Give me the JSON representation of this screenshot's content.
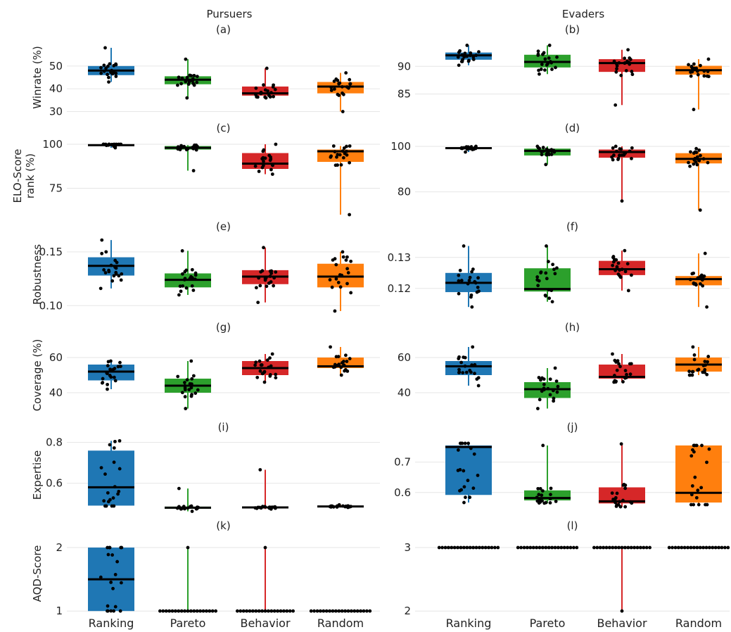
{
  "figure": {
    "column_titles": [
      "Pursuers",
      "Evaders"
    ],
    "categories": [
      "Ranking",
      "Pareto",
      "Behavior",
      "Random"
    ],
    "colors": {
      "Ranking": "#1f77b4",
      "Pareto": "#2ca02c",
      "Behavior": "#d62728",
      "Random": "#ff7f0e",
      "median": "#000000",
      "points": "#000000"
    }
  },
  "chart_data": [
    {
      "type": "box",
      "label": "(a)",
      "column": "Pursuers",
      "ylabel": "Winrate (%)",
      "ylim": [
        28,
        62
      ],
      "yticks": [
        30,
        40,
        50
      ],
      "boxes": [
        {
          "category": "Ranking",
          "q1": 46,
          "median": 48,
          "q3": 50,
          "min": 43,
          "max": 58
        },
        {
          "category": "Pareto",
          "q1": 42,
          "median": 44,
          "q3": 45.5,
          "min": 36,
          "max": 53
        },
        {
          "category": "Behavior",
          "q1": 37,
          "median": 38,
          "q3": 41,
          "min": 36,
          "max": 49
        },
        {
          "category": "Random",
          "q1": 38,
          "median": 41,
          "q3": 43,
          "min": 30,
          "max": 47
        }
      ]
    },
    {
      "type": "box",
      "label": "(b)",
      "column": "Evaders",
      "ylabel": "",
      "ylim": [
        81,
        95
      ],
      "yticks": [
        85,
        90
      ],
      "boxes": [
        {
          "category": "Ranking",
          "q1": 91.2,
          "median": 92,
          "q3": 92.5,
          "min": 90.2,
          "max": 93.8
        },
        {
          "category": "Pareto",
          "q1": 89.8,
          "median": 90.8,
          "q3": 92.1,
          "min": 88.6,
          "max": 93.8
        },
        {
          "category": "Behavior",
          "q1": 89,
          "median": 90.6,
          "q3": 91.3,
          "min": 83,
          "max": 93
        },
        {
          "category": "Random",
          "q1": 88.5,
          "median": 89.3,
          "q3": 90.1,
          "min": 82.2,
          "max": 91.3
        }
      ]
    },
    {
      "type": "box",
      "label": "(c)",
      "column": "Pursuers",
      "ylabel": "ELO-Score rank (%)",
      "ylim": [
        60,
        104
      ],
      "yticks": [
        75,
        100
      ],
      "boxes": [
        {
          "category": "Ranking",
          "q1": 99,
          "median": 99.5,
          "q3": 100,
          "min": 98,
          "max": 100
        },
        {
          "category": "Pareto",
          "q1": 97,
          "median": 98,
          "q3": 99,
          "min": 85,
          "max": 99.5
        },
        {
          "category": "Behavior",
          "q1": 86,
          "median": 89,
          "q3": 95,
          "min": 83,
          "max": 100
        },
        {
          "category": "Random",
          "q1": 90,
          "median": 96,
          "q3": 97,
          "min": 60,
          "max": 99
        }
      ]
    },
    {
      "type": "box",
      "label": "(d)",
      "column": "Evaders",
      "ylabel": "",
      "ylim": [
        70,
        104
      ],
      "yticks": [
        80,
        100
      ],
      "boxes": [
        {
          "category": "Ranking",
          "q1": 98.8,
          "median": 99.2,
          "q3": 99.6,
          "min": 97.5,
          "max": 100
        },
        {
          "category": "Pareto",
          "q1": 96,
          "median": 98,
          "q3": 99,
          "min": 92,
          "max": 100
        },
        {
          "category": "Behavior",
          "q1": 95,
          "median": 97.5,
          "q3": 98.6,
          "min": 76,
          "max": 100
        },
        {
          "category": "Random",
          "q1": 92.5,
          "median": 94.5,
          "q3": 97,
          "min": 72,
          "max": 99
        }
      ]
    },
    {
      "type": "box",
      "label": "(e)",
      "column": "Pursuers",
      "ylabel": "Robustness",
      "ylim": [
        0.093,
        0.165
      ],
      "yticks": [
        0.1,
        0.15
      ],
      "boxes": [
        {
          "category": "Ranking",
          "q1": 0.128,
          "median": 0.137,
          "q3": 0.145,
          "min": 0.116,
          "max": 0.161
        },
        {
          "category": "Pareto",
          "q1": 0.117,
          "median": 0.124,
          "q3": 0.13,
          "min": 0.11,
          "max": 0.151
        },
        {
          "category": "Behavior",
          "q1": 0.12,
          "median": 0.127,
          "q3": 0.133,
          "min": 0.103,
          "max": 0.154
        },
        {
          "category": "Random",
          "q1": 0.117,
          "median": 0.127,
          "q3": 0.139,
          "min": 0.095,
          "max": 0.15
        }
      ]
    },
    {
      "type": "box",
      "label": "(f)",
      "column": "Evaders",
      "ylabel": "",
      "ylim": [
        0.112,
        0.137
      ],
      "yticks": [
        0.12,
        0.13
      ],
      "boxes": [
        {
          "category": "Ranking",
          "q1": 0.1188,
          "median": 0.1218,
          "q3": 0.125,
          "min": 0.114,
          "max": 0.1337
        },
        {
          "category": "Pareto",
          "q1": 0.119,
          "median": 0.1198,
          "q3": 0.1265,
          "min": 0.1157,
          "max": 0.1337
        },
        {
          "category": "Behavior",
          "q1": 0.1243,
          "median": 0.1262,
          "q3": 0.1289,
          "min": 0.1193,
          "max": 0.1322
        },
        {
          "category": "Random",
          "q1": 0.121,
          "median": 0.123,
          "q3": 0.124,
          "min": 0.114,
          "max": 0.1313
        }
      ]
    },
    {
      "type": "box",
      "label": "(g)",
      "column": "Pursuers",
      "ylabel": "Coverage (%)",
      "ylim": [
        28,
        72
      ],
      "yticks": [
        40,
        60
      ],
      "boxes": [
        {
          "category": "Ranking",
          "q1": 47,
          "median": 52,
          "q3": 56,
          "min": 42,
          "max": 58
        },
        {
          "category": "Pareto",
          "q1": 40,
          "median": 44,
          "q3": 48,
          "min": 31,
          "max": 58
        },
        {
          "category": "Behavior",
          "q1": 50,
          "median": 54,
          "q3": 58,
          "min": 46,
          "max": 62
        },
        {
          "category": "Random",
          "q1": 54,
          "median": 55,
          "q3": 60,
          "min": 50,
          "max": 66
        }
      ]
    },
    {
      "type": "box",
      "label": "(h)",
      "column": "Evaders",
      "ylabel": "",
      "ylim": [
        28,
        72
      ],
      "yticks": [
        40,
        60
      ],
      "boxes": [
        {
          "category": "Ranking",
          "q1": 50,
          "median": 55,
          "q3": 58,
          "min": 44,
          "max": 66
        },
        {
          "category": "Pareto",
          "q1": 37,
          "median": 42,
          "q3": 46,
          "min": 31,
          "max": 54
        },
        {
          "category": "Behavior",
          "q1": 48,
          "median": 49,
          "q3": 56,
          "min": 46,
          "max": 62
        },
        {
          "category": "Random",
          "q1": 52,
          "median": 56,
          "q3": 60,
          "min": 50,
          "max": 66
        }
      ]
    },
    {
      "type": "box",
      "label": "(i)",
      "column": "Pursuers",
      "ylabel": "Expertise",
      "ylim": [
        0.45,
        0.83
      ],
      "yticks": [
        0.6,
        0.8
      ],
      "boxes": [
        {
          "category": "Ranking",
          "q1": 0.49,
          "median": 0.58,
          "q3": 0.76,
          "min": 0.488,
          "max": 0.808
        },
        {
          "category": "Pareto",
          "q1": 0.475,
          "median": 0.48,
          "q3": 0.485,
          "min": 0.462,
          "max": 0.574
        },
        {
          "category": "Behavior",
          "q1": 0.478,
          "median": 0.481,
          "q3": 0.484,
          "min": 0.473,
          "max": 0.666
        },
        {
          "category": "Random",
          "q1": 0.484,
          "median": 0.486,
          "q3": 0.488,
          "min": 0.481,
          "max": 0.494
        }
      ]
    },
    {
      "type": "box",
      "label": "(j)",
      "column": "Evaders",
      "ylabel": "",
      "ylim": [
        0.53,
        0.785
      ],
      "yticks": [
        0.6,
        0.7
      ],
      "boxes": [
        {
          "category": "Ranking",
          "q1": 0.592,
          "median": 0.75,
          "q3": 0.755,
          "min": 0.567,
          "max": 0.762
        },
        {
          "category": "Pareto",
          "q1": 0.574,
          "median": 0.582,
          "q3": 0.607,
          "min": 0.565,
          "max": 0.755
        },
        {
          "category": "Behavior",
          "q1": 0.564,
          "median": 0.571,
          "q3": 0.617,
          "min": 0.553,
          "max": 0.76
        },
        {
          "category": "Random",
          "q1": 0.567,
          "median": 0.599,
          "q3": 0.755,
          "min": 0.56,
          "max": 0.755
        }
      ]
    },
    {
      "type": "box",
      "label": "(k)",
      "column": "Pursuers",
      "ylabel": "AQD-Score",
      "ylim": [
        0.98,
        2.2
      ],
      "yticks": [
        1,
        2
      ],
      "boxes": [
        {
          "category": "Ranking",
          "q1": 1,
          "median": 1.5,
          "q3": 2,
          "min": 1,
          "max": 2
        },
        {
          "category": "Pareto",
          "q1": 1,
          "median": 1,
          "q3": 1,
          "min": 1,
          "max": 2
        },
        {
          "category": "Behavior",
          "q1": 1,
          "median": 1,
          "q3": 1,
          "min": 1,
          "max": 2
        },
        {
          "category": "Random",
          "q1": 1,
          "median": 1,
          "q3": 1,
          "min": 1,
          "max": 1
        }
      ]
    },
    {
      "type": "box",
      "label": "(l)",
      "column": "Evaders",
      "ylabel": "",
      "ylim": [
        1.98,
        3.2
      ],
      "yticks": [
        2,
        3
      ],
      "boxes": [
        {
          "category": "Ranking",
          "q1": 3,
          "median": 3,
          "q3": 3,
          "min": 3,
          "max": 3
        },
        {
          "category": "Pareto",
          "q1": 3,
          "median": 3,
          "q3": 3,
          "min": 3,
          "max": 3
        },
        {
          "category": "Behavior",
          "q1": 3,
          "median": 3,
          "q3": 3,
          "min": 2,
          "max": 3
        },
        {
          "category": "Random",
          "q1": 3,
          "median": 3,
          "q3": 3,
          "min": 3,
          "max": 3
        }
      ]
    }
  ]
}
